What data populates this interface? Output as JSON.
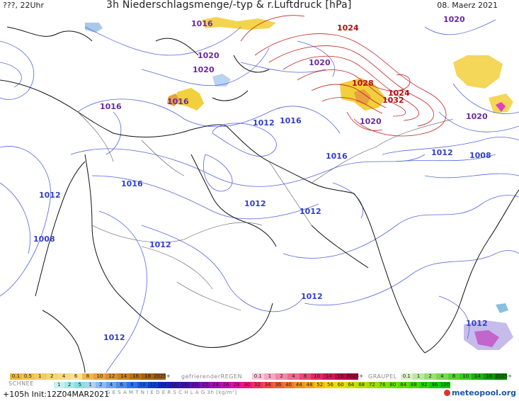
{
  "header": {
    "time_label": "???, 22Uhr",
    "title": "3h Niederschlagsmenge/-typ & r.Luftdruck [hPa]",
    "date": "08. Maerz 2021"
  },
  "isobars": [
    {
      "text": "1016"
    },
    {
      "text": "1024"
    },
    {
      "text": "1020"
    },
    {
      "text": "1020"
    },
    {
      "text": "1020"
    },
    {
      "text": "1020"
    },
    {
      "text": "1028"
    },
    {
      "text": "1024"
    },
    {
      "text": "1032"
    },
    {
      "text": "1016"
    },
    {
      "text": "1016"
    },
    {
      "text": "1012"
    },
    {
      "text": "1016"
    },
    {
      "text": "1020"
    },
    {
      "text": "1020"
    },
    {
      "text": "1016"
    },
    {
      "text": "1012"
    },
    {
      "text": "1008"
    },
    {
      "text": "1016"
    },
    {
      "text": "1012"
    },
    {
      "text": "1012"
    },
    {
      "text": "1012"
    },
    {
      "text": "1008"
    },
    {
      "text": "1012"
    },
    {
      "text": "1012"
    },
    {
      "text": "1012"
    },
    {
      "text": "1012"
    }
  ],
  "legend": {
    "snow_label": "SCHNEE",
    "snow_values": [
      "0.1",
      "0.5",
      "1",
      "2",
      "4",
      "6",
      "8",
      "10",
      "12",
      "14",
      "16",
      "18",
      "2025+"
    ],
    "freezing_rain_label": "gefrierenderREGEN",
    "freezing_rain_values": [
      "0.1",
      "1",
      "2",
      "4",
      "8",
      "10",
      "14",
      "16",
      "2025+"
    ],
    "graupel_label": "GRAUPEL",
    "graupel_values": [
      "0.1",
      "1",
      "2",
      "4",
      "8",
      "10",
      "14",
      "16",
      "2025+"
    ],
    "total_label": "G E S A M T N I E D E R S C H L A G   3h  [kg/m²]",
    "total_values": [
      "1",
      "2",
      "5",
      "1",
      "2",
      "4",
      "6",
      "8",
      "10",
      "12",
      "14",
      "16",
      "18",
      "20",
      "22",
      "24",
      "26",
      "28",
      "30",
      "32",
      "34",
      "36",
      "40",
      "44",
      "48",
      "52",
      "56",
      "60",
      "64",
      "68",
      "72",
      "76",
      "80",
      "84",
      "88",
      "92",
      "96",
      "100"
    ],
    "colors": {
      "snow": [
        "#e8b840",
        "#f0c050",
        "#f0cc60",
        "#f4d470",
        "#f6da80",
        "#f8e090",
        "#f0b850",
        "#e8a040",
        "#d89030",
        "#c88020",
        "#b87018",
        "#a86010",
        "#9a5a20"
      ],
      "freezing_rain": [
        "#f8c8d8",
        "#f4a8c0",
        "#f088a8",
        "#ec6890",
        "#e84878",
        "#e02868",
        "#d01858",
        "#c00848",
        "#b00038"
      ],
      "graupel": [
        "#d8f0c8",
        "#b8e8a0",
        "#98e078",
        "#78d850",
        "#58d030",
        "#38c820",
        "#20b010",
        "#109800",
        "#088000"
      ],
      "total": [
        "#c8f0f0",
        "#a8e8e8",
        "#88e0e0",
        "#b0d0f0",
        "#90b8f0",
        "#70a0f0",
        "#5088f0",
        "#3070f0",
        "#2058e0",
        "#1040d0",
        "#1028c0",
        "#2818b0",
        "#4010b0",
        "#6010b0",
        "#8010b0",
        "#a010b0",
        "#c010b0",
        "#e010a0",
        "#f01880",
        "#f03060",
        "#f04840",
        "#f06030",
        "#f07828",
        "#f09020",
        "#f0a818",
        "#f0c010",
        "#f0d808",
        "#e8e000",
        "#d0e000",
        "#b8e000",
        "#a0e000",
        "#88e000",
        "#70e000",
        "#58e000",
        "#40e000",
        "#28d800",
        "#10d000",
        "#00c800"
      ]
    }
  },
  "footer": {
    "run": "+105h  Init:12Z04MAR2021",
    "brand": "meteopool.org"
  }
}
